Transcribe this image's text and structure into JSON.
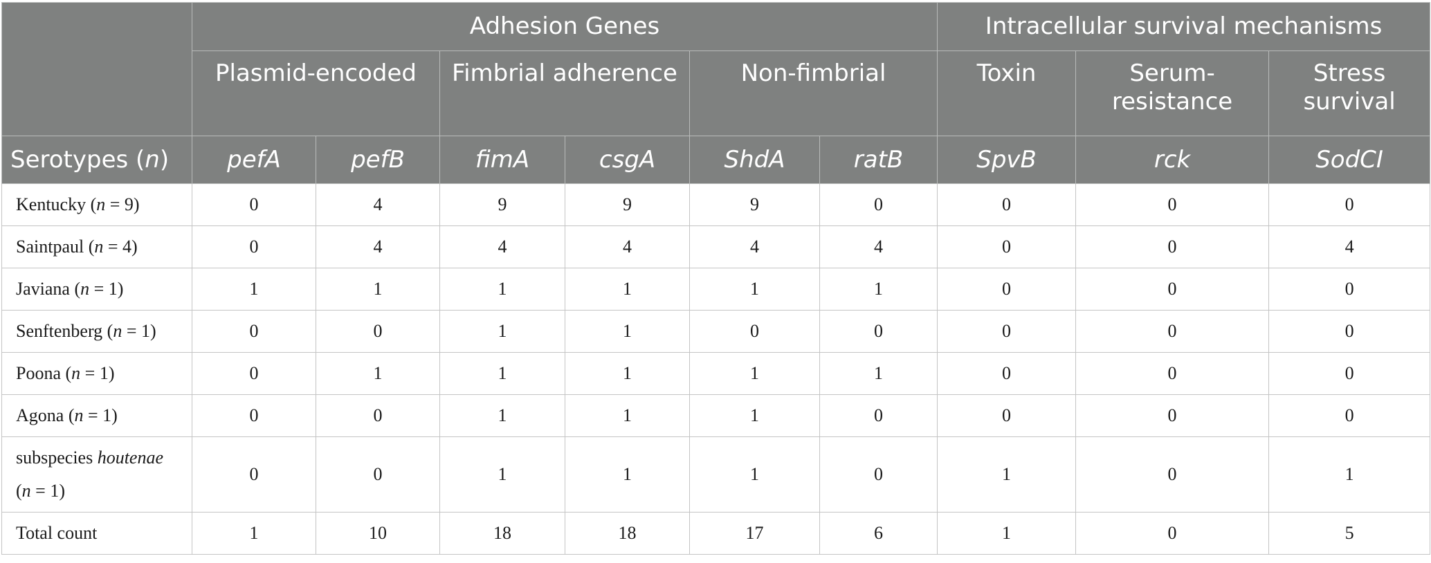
{
  "header": {
    "group1": "Adhesion Genes",
    "group2": "Intracellular survival mechanisms",
    "sub": [
      "Plasmid-encoded",
      "Fimbrial adherence",
      "Non-fimbrial",
      "Toxin",
      "Serum-resistance",
      "Stress survival"
    ],
    "serotypes_prefix": "Serotypes (",
    "serotypes_n": "n",
    "serotypes_suffix": ")",
    "genes": [
      "pefA",
      "pefB",
      "fimA",
      "csgA",
      "ShdA",
      "ratB",
      "SpvB",
      "rck",
      "SodCI"
    ]
  },
  "rows": [
    {
      "name": "Kentucky (",
      "italic": "",
      "after": "",
      "n": "9",
      "values": [
        "0",
        "4",
        "9",
        "9",
        "9",
        "0",
        "0",
        "0",
        "0"
      ]
    },
    {
      "name": "Saintpaul (",
      "italic": "",
      "after": "",
      "n": "4",
      "values": [
        "0",
        "4",
        "4",
        "4",
        "4",
        "4",
        "0",
        "0",
        "4"
      ]
    },
    {
      "name": "Javiana (",
      "italic": "",
      "after": "",
      "n": "1",
      "values": [
        "1",
        "1",
        "1",
        "1",
        "1",
        "1",
        "0",
        "0",
        "0"
      ]
    },
    {
      "name": "Senftenberg (",
      "italic": "",
      "after": "",
      "n": "1",
      "values": [
        "0",
        "0",
        "1",
        "1",
        "0",
        "0",
        "0",
        "0",
        "0"
      ]
    },
    {
      "name": "Poona (",
      "italic": "",
      "after": "",
      "n": "1",
      "values": [
        "0",
        "1",
        "1",
        "1",
        "1",
        "1",
        "0",
        "0",
        "0"
      ]
    },
    {
      "name": "Agona (",
      "italic": "",
      "after": "",
      "n": "1",
      "values": [
        "0",
        "0",
        "1",
        "1",
        "1",
        "0",
        "0",
        "0",
        "0"
      ]
    },
    {
      "name": "subspecies ",
      "italic": "houtenae",
      "after": "(",
      "n": "1",
      "values": [
        "0",
        "0",
        "1",
        "1",
        "1",
        "0",
        "1",
        "0",
        "1"
      ]
    }
  ],
  "total": {
    "label": "Total count",
    "values": [
      "1",
      "10",
      "18",
      "18",
      "17",
      "6",
      "1",
      "0",
      "5"
    ]
  },
  "n_symbol": "n",
  "n_eq": " = ",
  "close_paren": ")"
}
